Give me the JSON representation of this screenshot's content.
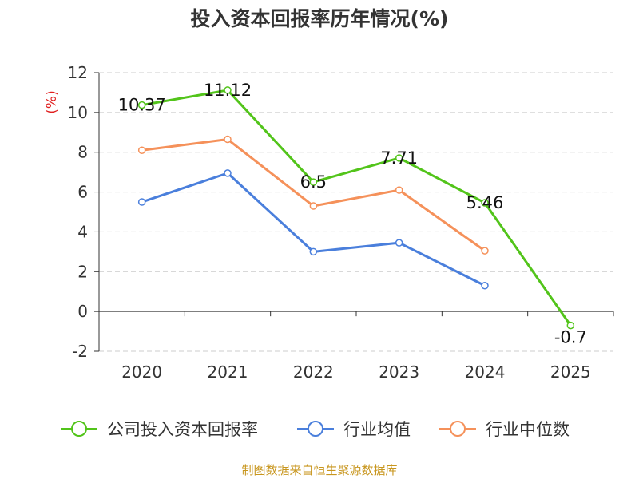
{
  "chart_data": {
    "type": "line",
    "title": "投入资本回报率历年情况(%)",
    "ylabel": "(%)",
    "xlabel": "",
    "categories": [
      "2020",
      "2021",
      "2022",
      "2023",
      "2024",
      "2025"
    ],
    "ylim": [
      -2,
      12
    ],
    "yticks": [
      -2,
      0,
      2,
      4,
      6,
      8,
      10,
      12
    ],
    "grid": true,
    "legend_position": "bottom",
    "series": [
      {
        "name": "公司投入资本回报率",
        "color": "#52c41a",
        "values": [
          10.37,
          11.12,
          6.5,
          7.71,
          5.46,
          -0.7
        ],
        "labels": [
          "10.37",
          "11.12",
          "6.5",
          "7.71",
          "5.46",
          "-0.7"
        ]
      },
      {
        "name": "行业均值",
        "color": "#4a7fdc",
        "values": [
          5.5,
          6.95,
          3.0,
          3.45,
          1.3,
          null
        ]
      },
      {
        "name": "行业中位数",
        "color": "#f5915a",
        "values": [
          8.1,
          8.65,
          5.3,
          6.1,
          3.05,
          null
        ]
      }
    ]
  },
  "source": "制图数据来自恒生聚源数据库"
}
